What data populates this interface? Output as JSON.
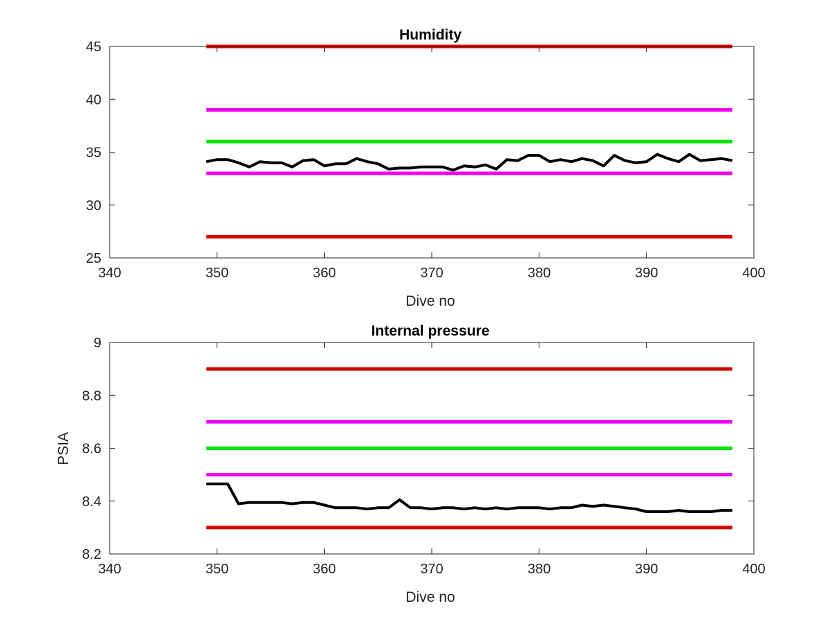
{
  "chart_data": [
    {
      "type": "line",
      "title": "Humidity",
      "xlabel": "Dive no",
      "ylabel": "",
      "xlim": [
        340,
        400
      ],
      "ylim": [
        25,
        45
      ],
      "xticks": [
        340,
        350,
        360,
        370,
        380,
        390,
        400
      ],
      "yticks": [
        25,
        30,
        35,
        40,
        45
      ],
      "grid": false,
      "box": true,
      "thresholds": [
        {
          "value": 45,
          "color": "#d40000",
          "x": [
            349,
            398
          ]
        },
        {
          "value": 39,
          "color": "#ee00ee",
          "x": [
            349,
            398
          ]
        },
        {
          "value": 36,
          "color": "#00e600",
          "x": [
            349,
            398
          ]
        },
        {
          "value": 33,
          "color": "#ee00ee",
          "x": [
            349,
            398
          ]
        },
        {
          "value": 27,
          "color": "#d40000",
          "x": [
            349,
            398
          ]
        }
      ],
      "series": [
        {
          "color": "#000000",
          "x": [
            349,
            350,
            351,
            352,
            353,
            354,
            355,
            356,
            357,
            358,
            359,
            360,
            361,
            362,
            363,
            364,
            365,
            366,
            367,
            368,
            369,
            370,
            371,
            372,
            373,
            374,
            375,
            376,
            377,
            378,
            379,
            380,
            381,
            382,
            383,
            384,
            385,
            386,
            387,
            388,
            389,
            390,
            391,
            392,
            393,
            394,
            395,
            396,
            397,
            398
          ],
          "values": [
            34.1,
            34.3,
            34.3,
            34.0,
            33.6,
            34.1,
            34.0,
            34.0,
            33.6,
            34.2,
            34.3,
            33.7,
            33.9,
            33.9,
            34.4,
            34.1,
            33.9,
            33.4,
            33.5,
            33.5,
            33.6,
            33.6,
            33.6,
            33.3,
            33.7,
            33.6,
            33.8,
            33.4,
            34.3,
            34.2,
            34.7,
            34.7,
            34.1,
            34.3,
            34.1,
            34.4,
            34.2,
            33.7,
            34.7,
            34.2,
            34.0,
            34.1,
            34.8,
            34.4,
            34.1,
            34.8,
            34.2,
            34.3,
            34.4,
            34.2
          ]
        }
      ]
    },
    {
      "type": "line",
      "title": "Internal pressure",
      "xlabel": "Dive no",
      "ylabel": "PSIA",
      "xlim": [
        340,
        400
      ],
      "ylim": [
        8.2,
        9
      ],
      "xticks": [
        340,
        350,
        360,
        370,
        380,
        390,
        400
      ],
      "yticks": [
        8.2,
        8.4,
        8.6,
        8.8,
        9
      ],
      "grid": false,
      "box": true,
      "thresholds": [
        {
          "value": 8.9,
          "color": "#d40000",
          "x": [
            349,
            398
          ]
        },
        {
          "value": 8.7,
          "color": "#ee00ee",
          "x": [
            349,
            398
          ]
        },
        {
          "value": 8.6,
          "color": "#00e600",
          "x": [
            349,
            398
          ]
        },
        {
          "value": 8.5,
          "color": "#ee00ee",
          "x": [
            349,
            398
          ]
        },
        {
          "value": 8.3,
          "color": "#d40000",
          "x": [
            349,
            398
          ]
        }
      ],
      "series": [
        {
          "color": "#000000",
          "x": [
            349,
            350,
            351,
            352,
            353,
            354,
            355,
            356,
            357,
            358,
            359,
            360,
            361,
            362,
            363,
            364,
            365,
            366,
            367,
            368,
            369,
            370,
            371,
            372,
            373,
            374,
            375,
            376,
            377,
            378,
            379,
            380,
            381,
            382,
            383,
            384,
            385,
            386,
            387,
            388,
            389,
            390,
            391,
            392,
            393,
            394,
            395,
            396,
            397,
            398
          ],
          "values": [
            8.465,
            8.465,
            8.465,
            8.39,
            8.395,
            8.395,
            8.395,
            8.395,
            8.39,
            8.395,
            8.395,
            8.385,
            8.375,
            8.375,
            8.375,
            8.37,
            8.375,
            8.375,
            8.405,
            8.375,
            8.375,
            8.37,
            8.375,
            8.375,
            8.37,
            8.375,
            8.37,
            8.375,
            8.37,
            8.375,
            8.375,
            8.375,
            8.37,
            8.375,
            8.375,
            8.385,
            8.38,
            8.385,
            8.38,
            8.375,
            8.37,
            8.36,
            8.36,
            8.36,
            8.365,
            8.36,
            8.36,
            8.36,
            8.365,
            8.365
          ]
        }
      ]
    }
  ]
}
